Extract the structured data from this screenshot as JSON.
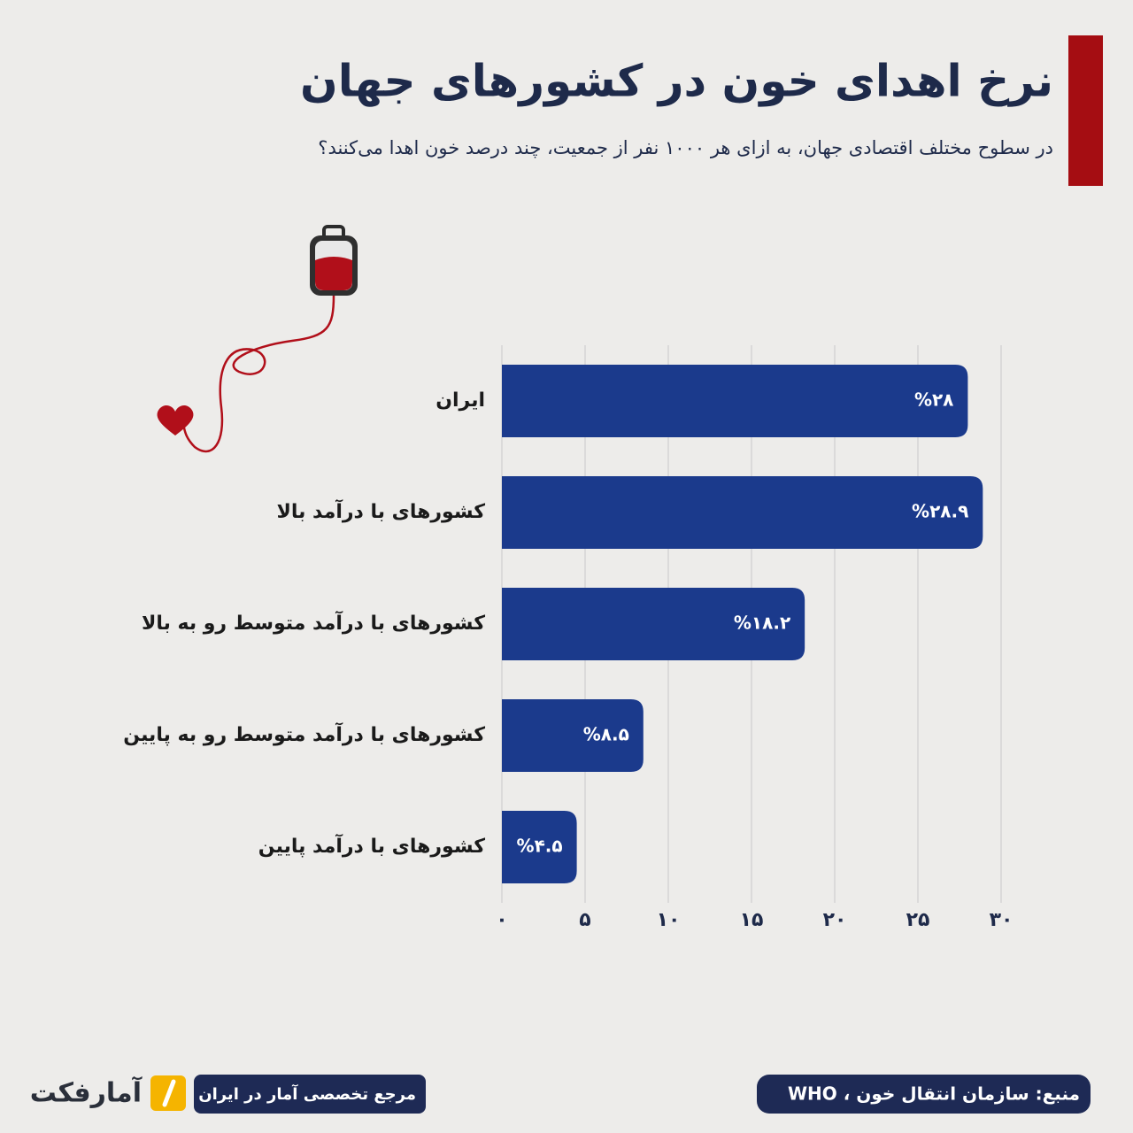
{
  "chart_data": {
    "type": "bar",
    "orientation": "horizontal",
    "title": "نرخ اهدای خون در کشورهای جهان",
    "subtitle": "در سطوح مختلف اقتصادی جهان، به ازای هر ۱۰۰۰ نفر از جمعیت، چند درصد خون اهدا می‌کنند؟",
    "categories": [
      "ایران",
      "کشورهای با درآمد بالا",
      "کشورهای با درآمد متوسط رو به بالا",
      "کشورهای با درآمد متوسط رو به پایین",
      "کشورهای با درآمد پایین"
    ],
    "values": [
      28,
      28.9,
      18.2,
      8.5,
      4.5
    ],
    "value_labels": [
      "%۲۸",
      "%۲۸.۹",
      "%۱۸.۲",
      "%۸.۵",
      "%۴.۵"
    ],
    "color": "#1b3a8c",
    "xlim": [
      0,
      30
    ],
    "xticks": [
      {
        "value": 0,
        "label": "۰"
      },
      {
        "value": 5,
        "label": "۵"
      },
      {
        "value": 10,
        "label": "۱۰"
      },
      {
        "value": 15,
        "label": "۱۵"
      },
      {
        "value": 20,
        "label": "۲۰"
      },
      {
        "value": 25,
        "label": "۲۵"
      },
      {
        "value": 30,
        "label": "۳۰"
      }
    ],
    "grid": true
  },
  "footer": {
    "source": "منبع: سازمان انتقال خون ، WHO",
    "tagline": "مرجع تخصصی آمار در ایران",
    "brand": "آمارفکت"
  }
}
